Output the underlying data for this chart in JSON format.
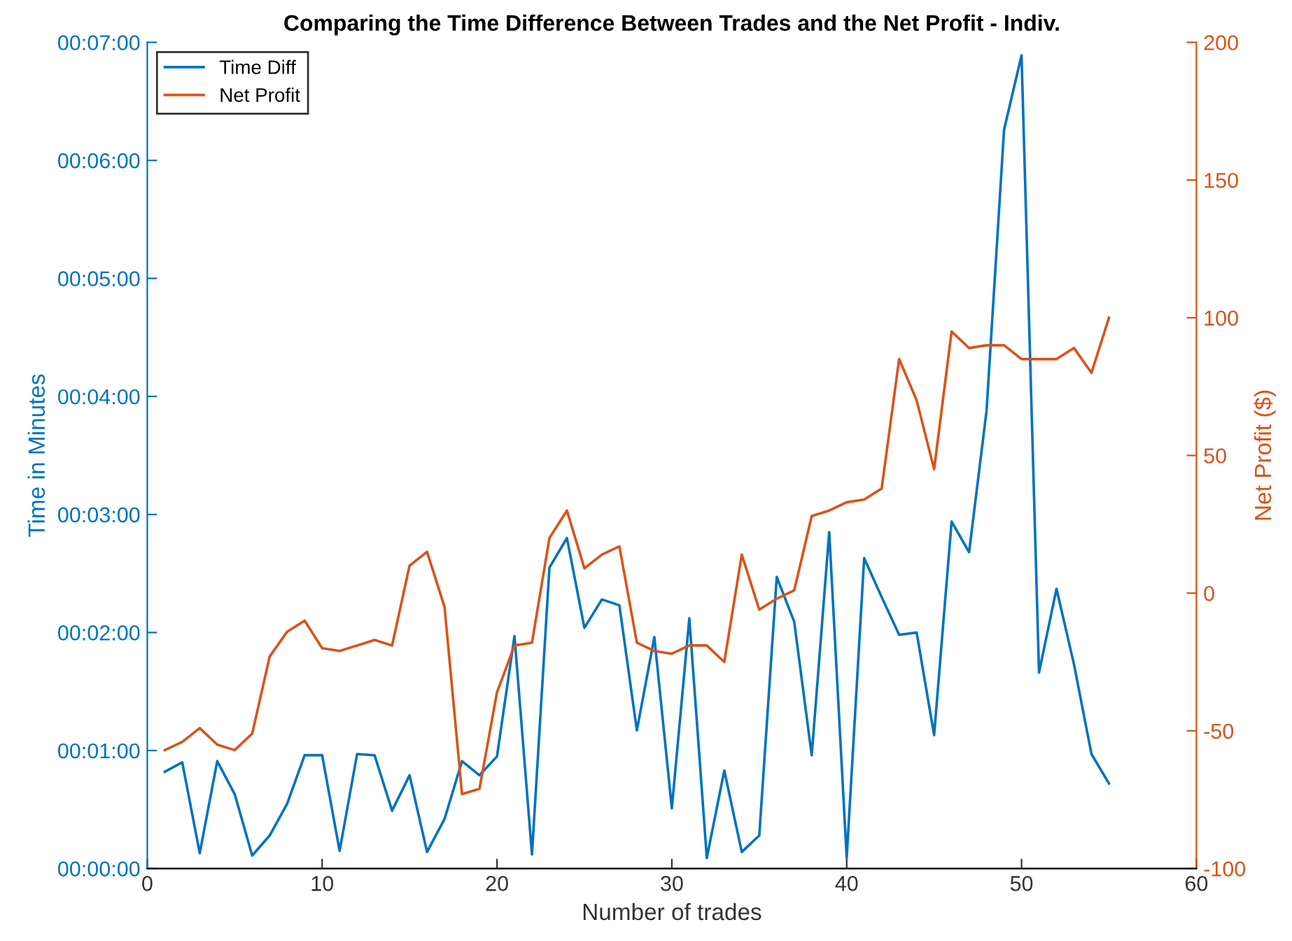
{
  "chart_data": {
    "type": "line",
    "title": "Comparing the Time Difference Between Trades and the Net Profit - Indiv.",
    "xlabel": "Number of trades",
    "ylabel": "Time in Minutes",
    "y2label": "Net Profit ($)",
    "x": [
      1,
      2,
      3,
      4,
      5,
      6,
      7,
      8,
      9,
      10,
      11,
      12,
      13,
      14,
      15,
      16,
      17,
      18,
      19,
      20,
      21,
      22,
      23,
      24,
      25,
      26,
      27,
      28,
      29,
      30,
      31,
      32,
      33,
      34,
      35,
      36,
      37,
      38,
      39,
      40,
      41,
      42,
      43,
      44,
      45,
      46,
      47,
      48,
      49,
      50,
      51,
      52,
      53,
      54,
      55
    ],
    "series": [
      {
        "name": "Time Diff",
        "color": "#0072bd",
        "values": [
          0.82,
          0.9,
          0.13,
          0.91,
          0.63,
          0.11,
          0.28,
          0.55,
          0.96,
          0.96,
          0.15,
          0.97,
          0.96,
          0.49,
          0.79,
          0.14,
          0.42,
          0.91,
          0.79,
          0.95,
          1.97,
          0.12,
          2.55,
          2.8,
          2.04,
          2.28,
          2.23,
          1.17,
          1.96,
          0.51,
          2.12,
          0.09,
          0.83,
          0.14,
          0.28,
          2.47,
          2.09,
          0.96,
          2.85,
          0.09,
          2.63,
          2.3,
          1.98,
          2.0,
          1.13,
          2.94,
          2.68,
          3.88,
          6.26,
          6.89,
          1.66,
          2.37,
          1.73,
          0.97,
          0.72
        ]
      },
      {
        "name": "Net Profit",
        "color": "#d95319",
        "axis": "y2",
        "values": [
          -57,
          -54,
          -49,
          -55,
          -57,
          -51,
          -23,
          -14,
          -10,
          -20,
          -21,
          -19,
          -17,
          -19,
          10,
          15,
          -5,
          -73,
          -71,
          -36,
          -19,
          -18,
          20,
          30,
          9,
          14,
          17,
          -18,
          -21,
          -22,
          -19,
          -19,
          -25,
          14,
          -6,
          -2,
          1,
          28,
          30,
          33,
          34,
          38,
          85,
          70,
          45,
          95,
          89,
          90,
          90,
          85,
          85,
          85,
          89,
          80,
          100
        ]
      }
    ],
    "xlim": [
      0,
      60
    ],
    "xticks": [
      0,
      10,
      20,
      30,
      40,
      50,
      60
    ],
    "ylim": [
      0,
      7
    ],
    "yticks": [
      {
        "value": 0,
        "label": "00:00:00"
      },
      {
        "value": 1,
        "label": "00:01:00"
      },
      {
        "value": 2,
        "label": "00:02:00"
      },
      {
        "value": 3,
        "label": "00:03:00"
      },
      {
        "value": 4,
        "label": "00:04:00"
      },
      {
        "value": 5,
        "label": "00:05:00"
      },
      {
        "value": 6,
        "label": "00:06:00"
      },
      {
        "value": 7,
        "label": "00:07:00"
      }
    ],
    "y2lim": [
      -100,
      200
    ],
    "y2ticks": [
      -100,
      -50,
      0,
      50,
      100,
      150,
      200
    ],
    "legend": "top left",
    "grid": false,
    "marker": "none",
    "line_style": "solid"
  }
}
